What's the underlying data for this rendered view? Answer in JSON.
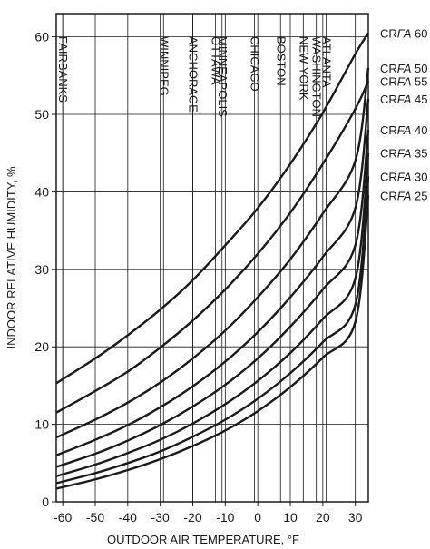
{
  "chart_data": {
    "type": "line",
    "title": "",
    "xlabel": "OUTDOOR AIR TEMPERATURE, °F",
    "ylabel": "INDOOR RELATIVE HUMIDITY, %",
    "xlim": [
      -62,
      34
    ],
    "ylim": [
      0,
      63
    ],
    "x_ticks": [
      -60,
      -50,
      -40,
      -30,
      -20,
      -10,
      0,
      10,
      20,
      30
    ],
    "x_tick_labels": [
      "-60",
      "-50",
      "-40",
      "-30",
      "-20",
      "-10",
      "0",
      "10",
      "20",
      "30"
    ],
    "y_ticks": [
      0,
      10,
      20,
      30,
      40,
      50,
      60
    ],
    "y_tick_labels": [
      "0",
      "10",
      "20",
      "30",
      "40",
      "50",
      "60"
    ],
    "grid": true,
    "legend_placement": "right",
    "series": [
      {
        "name": "CRFA 60",
        "name_prefix": "CR",
        "name_italic": "FA",
        "name_suffix": " 60",
        "x": [
          -62,
          -50,
          -40,
          -30,
          -20,
          -10,
          0,
          10,
          20,
          30,
          34
        ],
        "y": [
          15.3,
          18.5,
          21.5,
          24.8,
          28.6,
          33.1,
          37.9,
          43.6,
          50.2,
          57.8,
          60.5
        ]
      },
      {
        "name": "CRFA 55",
        "name_prefix": "CR",
        "name_italic": "FA",
        "name_suffix": " 55",
        "x": [
          -62,
          -50,
          -40,
          -30,
          -20,
          -10,
          0,
          10,
          20,
          30,
          34
        ],
        "y": [
          11.5,
          14.3,
          16.8,
          19.9,
          23.4,
          27.4,
          32.0,
          37.3,
          43.6,
          50.7,
          54.3
        ]
      },
      {
        "name": "CRFA 50",
        "name_prefix": "CR",
        "name_italic": "FA",
        "name_suffix": " 50",
        "x": [
          -62,
          -50,
          -40,
          -30,
          -20,
          -10,
          0,
          10,
          20,
          30,
          34
        ],
        "y": [
          8.3,
          10.6,
          12.8,
          15.4,
          18.5,
          22.1,
          26.4,
          31.3,
          37.2,
          44.0,
          56.0
        ]
      },
      {
        "name": "CRFA 45",
        "name_prefix": "CR",
        "name_italic": "FA",
        "name_suffix": " 45",
        "x": [
          -62,
          -50,
          -40,
          -30,
          -20,
          -10,
          0,
          10,
          20,
          30,
          34
        ],
        "y": [
          6.0,
          8.0,
          9.9,
          12.2,
          14.9,
          18.1,
          21.9,
          26.4,
          31.6,
          37.9,
          52.0
        ]
      },
      {
        "name": "CRFA 40",
        "name_prefix": "CR",
        "name_italic": "FA",
        "name_suffix": " 40",
        "x": [
          -62,
          -50,
          -40,
          -30,
          -20,
          -10,
          0,
          10,
          20,
          30,
          34
        ],
        "y": [
          4.5,
          6.2,
          7.9,
          9.9,
          12.3,
          15.1,
          18.5,
          22.6,
          27.4,
          33.1,
          48.0
        ]
      },
      {
        "name": "CRFA 35",
        "name_prefix": "CR",
        "name_italic": "FA",
        "name_suffix": " 35",
        "x": [
          -62,
          -50,
          -40,
          -30,
          -20,
          -10,
          0,
          10,
          20,
          30,
          34
        ],
        "y": [
          3.3,
          4.8,
          6.3,
          8.0,
          10.1,
          12.6,
          15.6,
          19.2,
          23.6,
          28.8,
          45.0
        ]
      },
      {
        "name": "CRFA 30",
        "name_prefix": "CR",
        "name_italic": "FA",
        "name_suffix": " 30",
        "x": [
          -62,
          -50,
          -40,
          -30,
          -20,
          -10,
          0,
          10,
          20,
          30,
          34
        ],
        "y": [
          2.4,
          3.7,
          5.0,
          6.5,
          8.4,
          10.6,
          13.3,
          16.6,
          20.6,
          25.4,
          42.0
        ]
      },
      {
        "name": "CRFA 25",
        "name_prefix": "CR",
        "name_italic": "FA",
        "name_suffix": " 25",
        "x": [
          -62,
          -50,
          -40,
          -30,
          -20,
          -10,
          0,
          10,
          20,
          30,
          34
        ],
        "y": [
          1.7,
          2.9,
          4.1,
          5.5,
          7.2,
          9.2,
          11.7,
          14.8,
          18.6,
          23.2,
          39.5
        ]
      }
    ],
    "cities": [
      {
        "name": "FAIRBANKS",
        "x": -60
      },
      {
        "name": "WINNIPEG",
        "x": -29
      },
      {
        "name": "ANCHORAGE",
        "x": -20
      },
      {
        "name": "OTTAWA",
        "x": -13
      },
      {
        "name": "MINNEAPOLIS",
        "x": -11
      },
      {
        "name": "CHICAGO",
        "x": -1
      },
      {
        "name": "BOSTON",
        "x": 7
      },
      {
        "name": "NEW YORK",
        "x": 14
      },
      {
        "name": "WASHINGTON",
        "x": 18
      },
      {
        "name": "ATLANTA",
        "x": 21
      }
    ],
    "colors": {
      "line": "#1a1a1a",
      "grid": "#1a1a1a",
      "background": "#ffffff"
    }
  }
}
